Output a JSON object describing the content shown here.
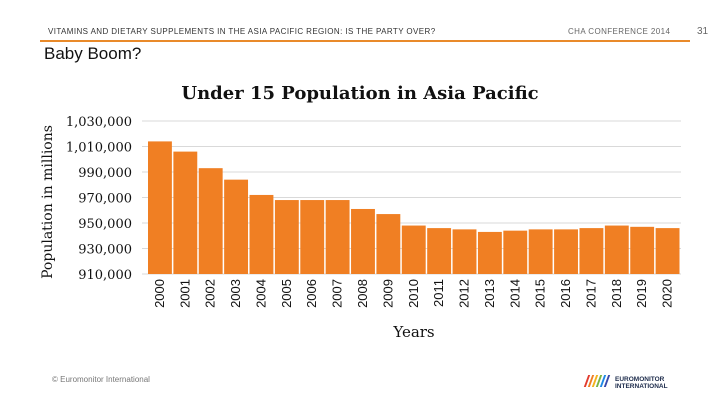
{
  "header": {
    "title": "VITAMINS AND DIETARY SUPPLEMENTS IN THE ASIA PACIFIC REGION: IS THE PARTY OVER?",
    "conference": "CHA CONFERENCE 2014",
    "page_number": "31"
  },
  "slide": {
    "title": "Baby Boom?"
  },
  "footer": {
    "copyright": "© Euromonitor International",
    "logo_line1": "EUROMONITOR",
    "logo_line2": "INTERNATIONAL"
  },
  "colors": {
    "bar": "#f07f23",
    "accent_rule": "#e98a2a"
  },
  "chart_data": {
    "type": "bar",
    "title": "Under 15 Population in Asia Pacific",
    "xlabel": "Years",
    "ylabel": "Population in millions",
    "categories": [
      "2000",
      "2001",
      "2002",
      "2003",
      "2004",
      "2005",
      "2006",
      "2007",
      "2008",
      "2009",
      "2010",
      "2011",
      "2012",
      "2013",
      "2014",
      "2015",
      "2016",
      "2017",
      "2018",
      "2019",
      "2020"
    ],
    "values": [
      1014,
      1006,
      993,
      984,
      972,
      968,
      968,
      968,
      961,
      957,
      948,
      946,
      945,
      943,
      944,
      945,
      945,
      946,
      948,
      947,
      946
    ],
    "y_ticks": [
      910000,
      930000,
      950000,
      970000,
      990000,
      1010000,
      1030000
    ],
    "y_tick_labels": [
      "910,000",
      "930,000",
      "950,000",
      "970,000",
      "990,000",
      "1,010,000",
      "1,030,000"
    ],
    "ylim": [
      910,
      1030
    ],
    "grid": true,
    "legend": "none"
  }
}
